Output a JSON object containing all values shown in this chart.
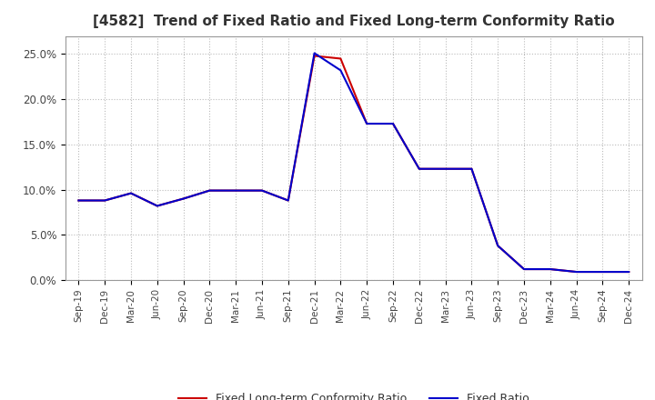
{
  "title": "[4582]  Trend of Fixed Ratio and Fixed Long-term Conformity Ratio",
  "title_fontsize": 11,
  "ylim": [
    0.0,
    0.27
  ],
  "yticks": [
    0.0,
    0.05,
    0.1,
    0.15,
    0.2,
    0.25
  ],
  "ytick_labels": [
    "0.0%",
    "5.0%",
    "10.0%",
    "15.0%",
    "20.0%",
    "25.0%"
  ],
  "background_color": "#ffffff",
  "plot_bg_color": "#ffffff",
  "grid_color": "#bbbbbb",
  "dates": [
    "Sep-19",
    "Dec-19",
    "Mar-20",
    "Jun-20",
    "Sep-20",
    "Dec-20",
    "Mar-21",
    "Jun-21",
    "Sep-21",
    "Dec-21",
    "Mar-22",
    "Jun-22",
    "Sep-22",
    "Dec-22",
    "Mar-23",
    "Jun-23",
    "Sep-23",
    "Dec-23",
    "Mar-24",
    "Jun-24",
    "Sep-24",
    "Dec-24"
  ],
  "fixed_ratio": [
    0.088,
    0.088,
    0.096,
    0.082,
    0.09,
    0.099,
    0.099,
    0.099,
    0.088,
    0.251,
    0.232,
    0.173,
    0.173,
    0.123,
    0.123,
    0.123,
    0.038,
    0.012,
    0.012,
    0.009,
    0.009,
    0.009
  ],
  "fixed_lt_ratio": [
    0.088,
    0.088,
    0.096,
    0.082,
    0.09,
    0.099,
    0.099,
    0.099,
    0.088,
    0.248,
    0.245,
    0.173,
    0.173,
    0.123,
    0.123,
    0.123,
    0.038,
    0.012,
    0.012,
    0.009,
    0.009,
    0.009
  ],
  "fixed_ratio_color": "#0000cc",
  "fixed_lt_ratio_color": "#cc0000",
  "line_width": 1.5,
  "legend_fixed": "Fixed Ratio",
  "legend_fixed_lt": "Fixed Long-term Conformity Ratio"
}
